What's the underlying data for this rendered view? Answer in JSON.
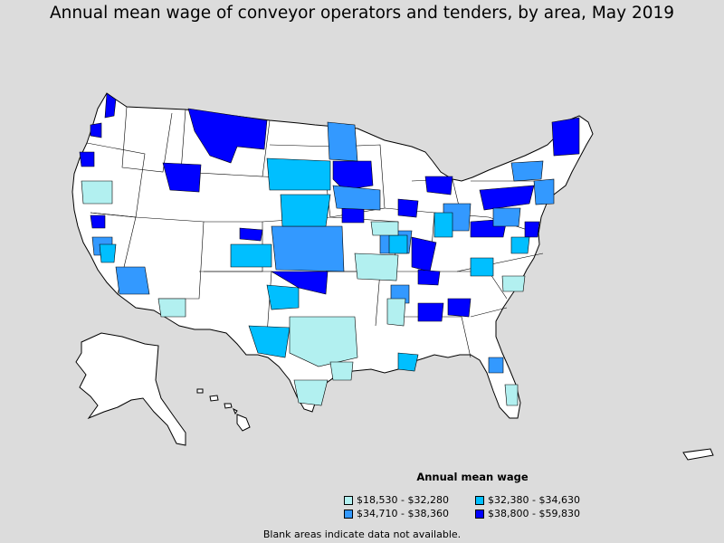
{
  "title": "Annual mean wage of conveyor operators and tenders, by area, May 2019",
  "legend": {
    "title": "Annual mean wage",
    "items": [
      {
        "label": "$18,530 - $32,280",
        "color": "#b2f0f0"
      },
      {
        "label": "$32,380 - $34,630",
        "color": "#00bfff"
      },
      {
        "label": "$34,710 - $38,360",
        "color": "#3399ff"
      },
      {
        "label": "$38,800 - $59,830",
        "color": "#0000ff"
      }
    ]
  },
  "footnote": "Blank areas indicate data not available.",
  "colors": {
    "background": "#dcdcdc",
    "no_data": "#ffffff",
    "border": "#000000"
  }
}
